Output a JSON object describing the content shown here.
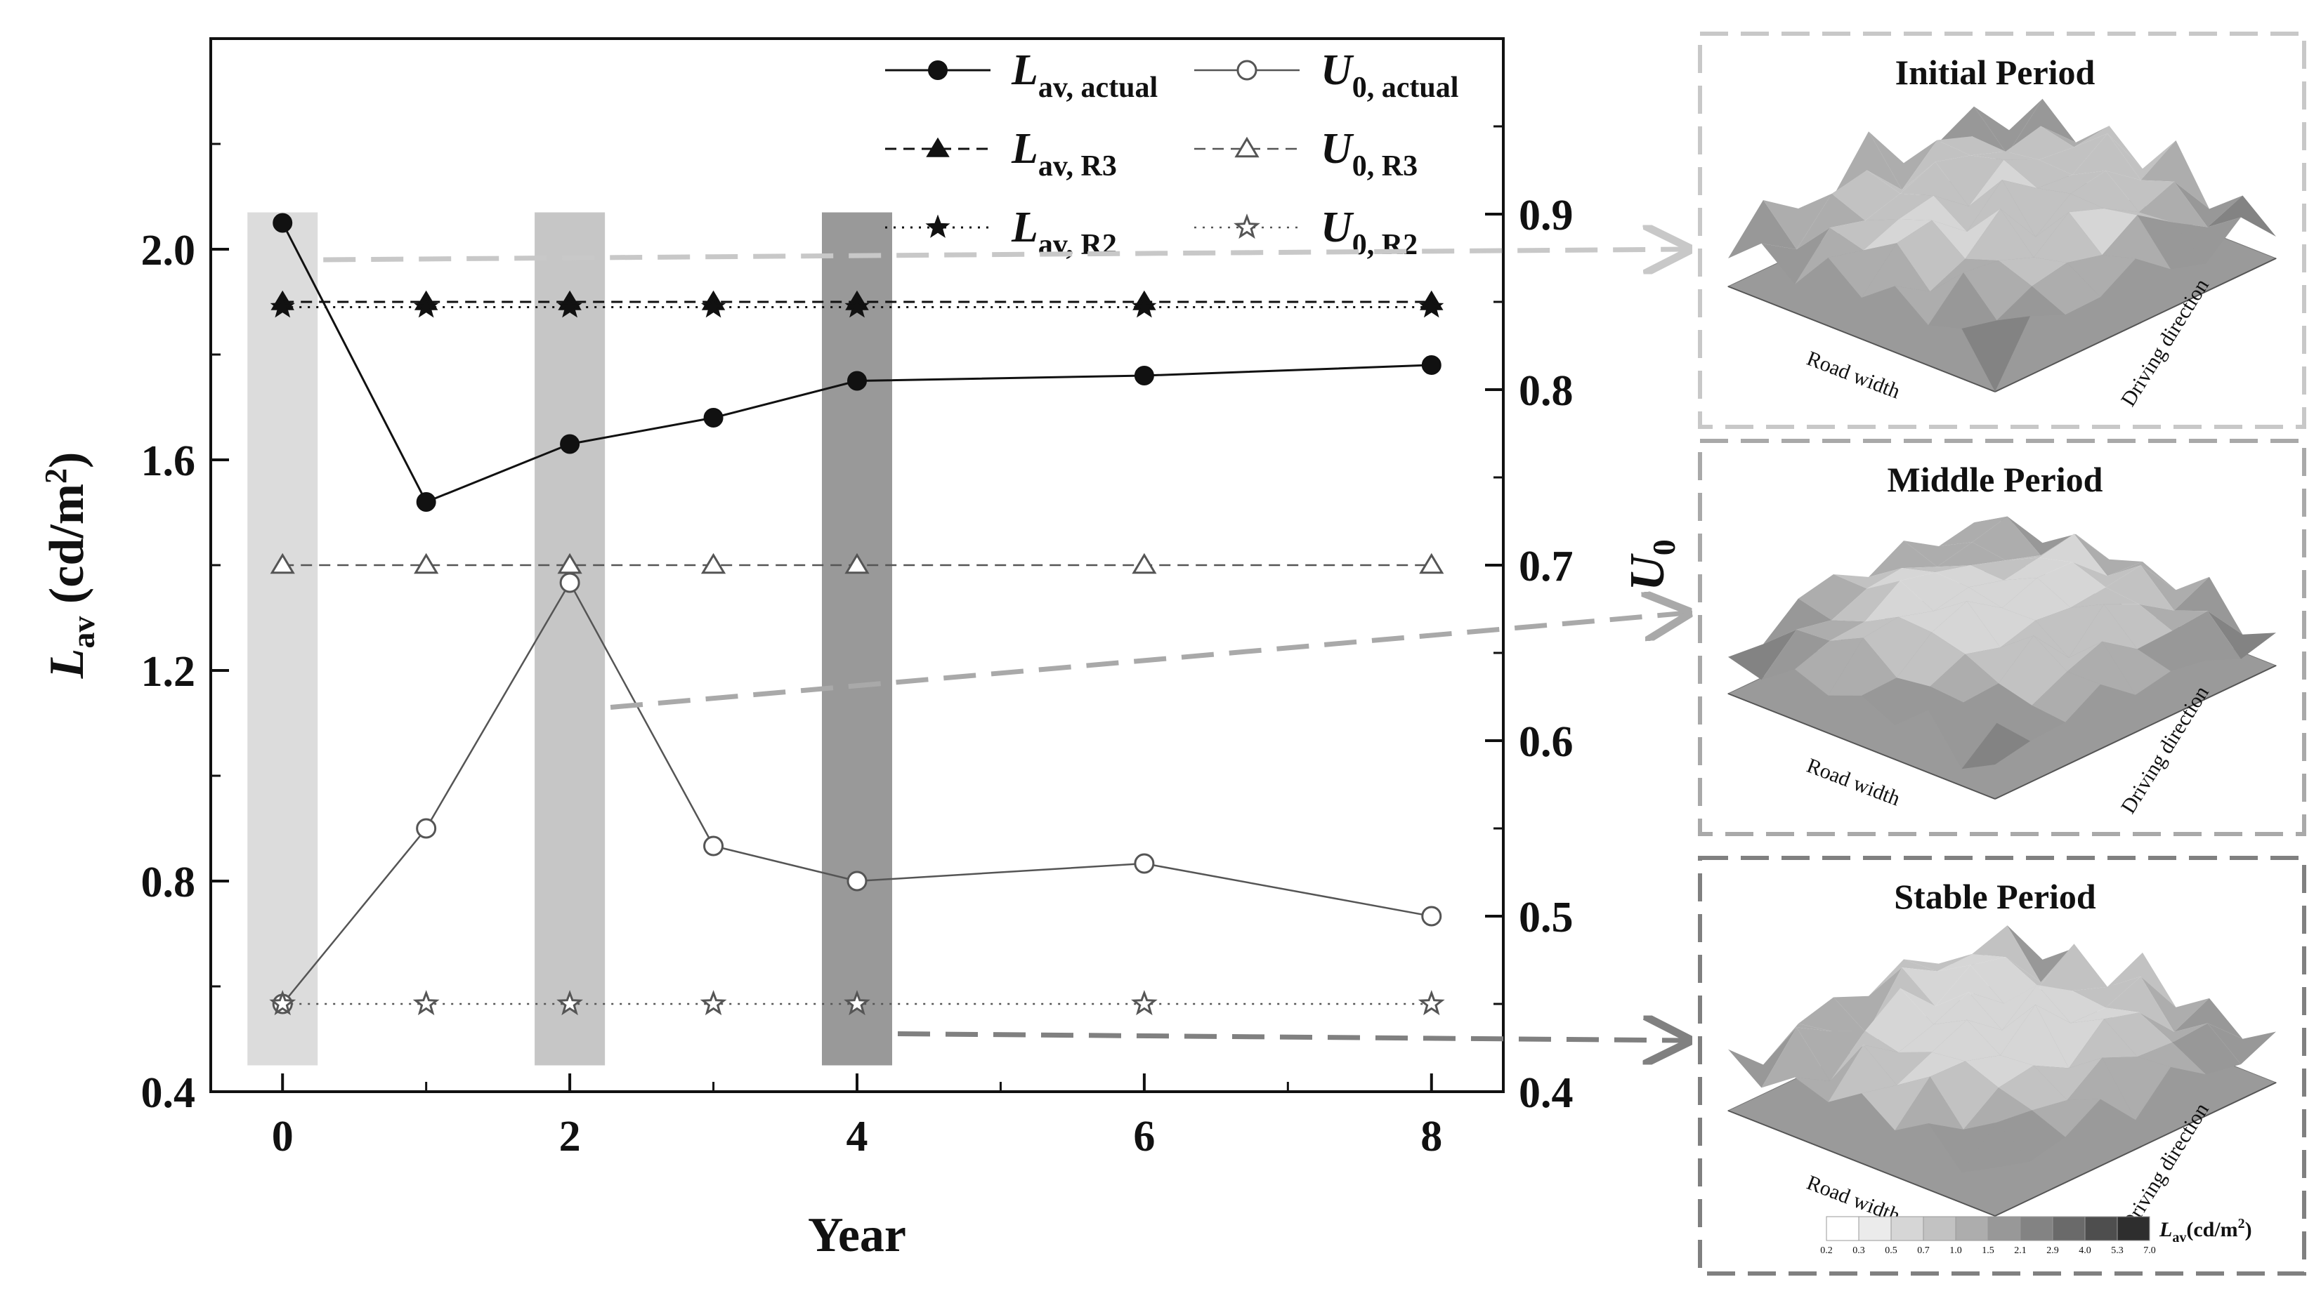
{
  "chart_data": {
    "type": "line",
    "x": [
      0,
      1,
      2,
      3,
      4,
      6,
      8
    ],
    "xlabel": "Year",
    "xticks": [
      "0",
      "2",
      "4",
      "6",
      "8"
    ],
    "xlim": [
      -0.5,
      8.5
    ],
    "y_left": {
      "title_main": "L",
      "title_sub": "av",
      "title_unit": " (cd/m",
      "title_sup": "2",
      "title_close": ")",
      "lim": [
        0.4,
        2.4
      ],
      "ticks": [
        "0.4",
        "0.8",
        "1.2",
        "1.6",
        "2.0"
      ]
    },
    "y_right": {
      "title_main": "U",
      "title_sub": "0",
      "lim": [
        0.4,
        1.0
      ],
      "ticks": [
        "0.4",
        "0.5",
        "0.6",
        "0.7",
        "0.8",
        "0.9"
      ]
    },
    "series": [
      {
        "name_main": "L",
        "name_sub": "av, actual",
        "axis": "left",
        "style": "solid",
        "marker": "filled-circle",
        "values": [
          2.05,
          1.52,
          1.63,
          1.68,
          1.75,
          1.76,
          1.78
        ]
      },
      {
        "name_main": "U",
        "name_sub": "0, actual",
        "axis": "right",
        "style": "solid",
        "marker": "open-circle",
        "values": [
          0.45,
          0.55,
          0.69,
          0.54,
          0.52,
          0.53,
          0.5
        ]
      },
      {
        "name_main": "L",
        "name_sub": "av, R3",
        "axis": "left",
        "style": "dashed",
        "marker": "filled-triangle",
        "values": [
          1.9,
          1.9,
          1.9,
          1.9,
          1.9,
          1.9,
          1.9
        ]
      },
      {
        "name_main": "U",
        "name_sub": "0, R3",
        "axis": "right",
        "style": "dashed",
        "marker": "open-triangle",
        "values": [
          0.7,
          0.7,
          0.7,
          0.7,
          0.7,
          0.7,
          0.7
        ]
      },
      {
        "name_main": "L",
        "name_sub": "av, R2",
        "axis": "left",
        "style": "dotted",
        "marker": "filled-star",
        "values": [
          1.89,
          1.89,
          1.89,
          1.89,
          1.89,
          1.89,
          1.89
        ]
      },
      {
        "name_main": "U",
        "name_sub": "0, R2",
        "axis": "right",
        "style": "dotted",
        "marker": "open-star",
        "values": [
          0.45,
          0.45,
          0.45,
          0.45,
          0.45,
          0.45,
          0.45
        ]
      }
    ],
    "highlight_bands": [
      {
        "year": 0,
        "color": "#dcdcdc"
      },
      {
        "year": 2,
        "color": "#c6c6c6"
      },
      {
        "year": 4,
        "color": "#999999"
      }
    ],
    "band_range": [
      0.45,
      2.07
    ]
  },
  "panels": [
    {
      "title": "Initial Period",
      "x_axis_label": "Road width",
      "y_axis_label": "Driving direction",
      "border": "#c8c8c8",
      "arrow": "#c8c8c8",
      "from_year": 0,
      "from_value": 1.98
    },
    {
      "title": "Middle Period",
      "x_axis_label": "Road width",
      "y_axis_label": "Driving direction",
      "border": "#a9a9a9",
      "arrow": "#a9a9a9",
      "from_year": 2,
      "from_value": 1.13
    },
    {
      "title": "Stable Period",
      "x_axis_label": "Road width",
      "y_axis_label": "Driving direction",
      "border": "#808080",
      "arrow": "#808080",
      "from_year": 4,
      "from_value": 0.51
    }
  ],
  "colorbar": {
    "ticks": [
      "0.2",
      "0.3",
      "0.5",
      "0.7",
      "1.0",
      "1.5",
      "2.1",
      "2.9",
      "4.0",
      "5.3",
      "7.0"
    ],
    "label_main": "L",
    "label_sub": "av",
    "label_unit": "(cd/m",
    "label_sup": "2",
    "label_close": ")",
    "colors": [
      "#ffffff",
      "#ebebeb",
      "#d6d6d6",
      "#c2c2c2",
      "#adadad",
      "#989898",
      "#838383",
      "#6a6a6a",
      "#4e4e4e",
      "#2e2e2e"
    ]
  }
}
